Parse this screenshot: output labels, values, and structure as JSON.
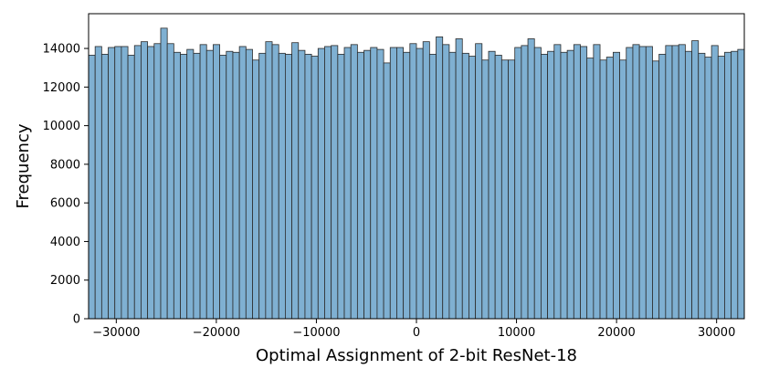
{
  "chart_data": {
    "type": "bar",
    "title": "",
    "xlabel": "Optimal Assignment of 2-bit ResNet-18",
    "ylabel": "Frequency",
    "xlim": [
      -32768,
      32768
    ],
    "ylim": [
      0,
      15800
    ],
    "bar_color": "#7fb0d2",
    "edge_color": "#2b2b2b",
    "grid": false,
    "bins": {
      "start": -32768,
      "width": 655.36,
      "count": 100
    },
    "values": [
      13650,
      14100,
      13700,
      14050,
      14100,
      14100,
      13650,
      14150,
      14350,
      14100,
      14250,
      15050,
      14250,
      13800,
      13700,
      13950,
      13750,
      14200,
      13900,
      14200,
      13650,
      13850,
      13800,
      14100,
      13950,
      13400,
      13750,
      14350,
      14200,
      13750,
      13700,
      14300,
      13900,
      13700,
      13600,
      14000,
      14100,
      14150,
      13700,
      14050,
      14200,
      13800,
      13900,
      14050,
      13950,
      13250,
      14050,
      14050,
      13800,
      14250,
      14000,
      14350,
      13700,
      14600,
      14200,
      13800,
      14500,
      13750,
      13600,
      14250,
      13400,
      13850,
      13650,
      13400,
      13400,
      14050,
      14150,
      14500,
      14050,
      13700,
      13850,
      14200,
      13800,
      13900,
      14200,
      14100,
      13500,
      14200,
      13400,
      13550,
      13800,
      13400,
      14050,
      14200,
      14100,
      14100,
      13350,
      13700,
      14150,
      14150,
      14200,
      13850,
      14400,
      13750,
      13550,
      14150,
      13600,
      13800,
      13850,
      13950
    ],
    "xticks": [
      {
        "value": -30000,
        "label": "−30000"
      },
      {
        "value": -20000,
        "label": "−20000"
      },
      {
        "value": -10000,
        "label": "−10000"
      },
      {
        "value": 0,
        "label": "0"
      },
      {
        "value": 10000,
        "label": "10000"
      },
      {
        "value": 20000,
        "label": "20000"
      },
      {
        "value": 30000,
        "label": "30000"
      }
    ],
    "yticks": [
      {
        "value": 0,
        "label": "0"
      },
      {
        "value": 2000,
        "label": "2000"
      },
      {
        "value": 4000,
        "label": "4000"
      },
      {
        "value": 6000,
        "label": "6000"
      },
      {
        "value": 8000,
        "label": "8000"
      },
      {
        "value": 10000,
        "label": "10000"
      },
      {
        "value": 12000,
        "label": "12000"
      },
      {
        "value": 14000,
        "label": "14000"
      }
    ]
  }
}
